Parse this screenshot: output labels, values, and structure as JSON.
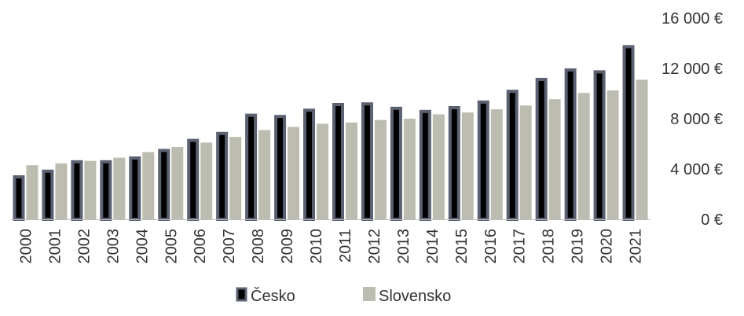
{
  "chart_data": {
    "type": "bar",
    "categories": [
      "2000",
      "2001",
      "2002",
      "2003",
      "2004",
      "2005",
      "2006",
      "2007",
      "2008",
      "2009",
      "2010",
      "2011",
      "2012",
      "2013",
      "2014",
      "2015",
      "2016",
      "2017",
      "2018",
      "2019",
      "2020",
      "2021"
    ],
    "series": [
      {
        "name": "Česko",
        "values": [
          3500,
          3950,
          4700,
          4700,
          5000,
          5600,
          6400,
          6950,
          8400,
          8300,
          8800,
          9250,
          9300,
          8950,
          8700,
          9000,
          9450,
          10300,
          11250,
          12000,
          11850,
          13850
        ],
        "color": "#000000",
        "border_color": "#5b6170"
      },
      {
        "name": "Slovensko",
        "values": [
          4300,
          4450,
          4650,
          4900,
          5350,
          5750,
          6100,
          6550,
          7100,
          7350,
          7600,
          7700,
          7900,
          8000,
          8350,
          8500,
          8750,
          9050,
          9550,
          10050,
          10250,
          11100
        ],
        "color": "#bcbdb0"
      }
    ],
    "y_ticks": [
      "0 €",
      "4 000 €",
      "8 000 €",
      "12 000 €",
      "16 000 €"
    ],
    "y_tick_values": [
      0,
      4000,
      8000,
      12000,
      16000
    ],
    "ylim": [
      0,
      16000
    ],
    "y_axis_position": "right",
    "grid": false,
    "legend_position": "bottom",
    "title": "",
    "xlabel": "",
    "ylabel": ""
  }
}
